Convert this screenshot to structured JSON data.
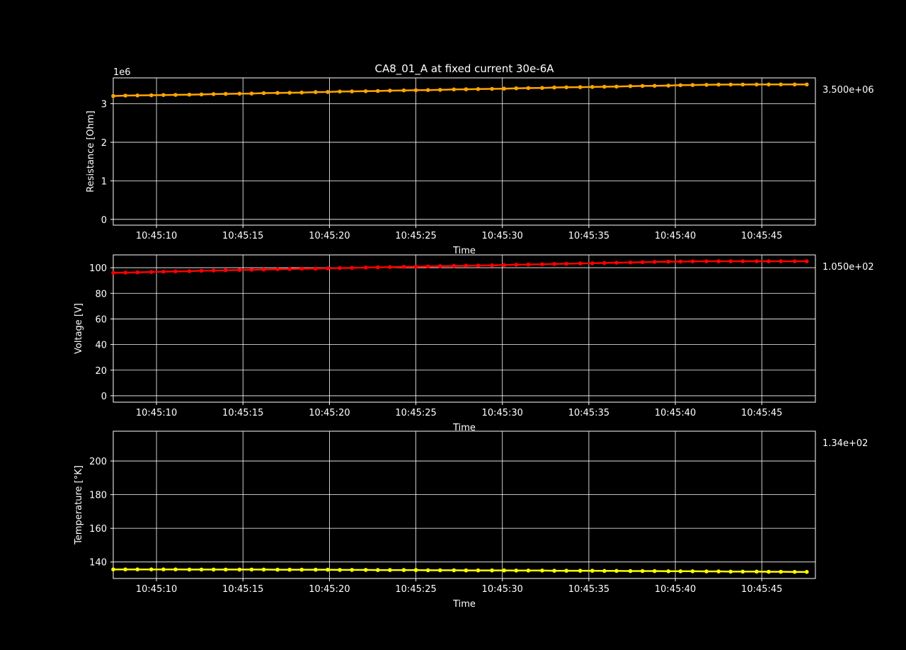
{
  "title": "CA8_01_A at fixed current 30e-6A",
  "chart_data": [
    {
      "type": "line",
      "xlabel": "Time",
      "ylabel": "Resistance [Ohm]",
      "y_offset_label": "1e6",
      "last_value_label": "3.500e+06",
      "color": "#ffa500",
      "grid": true,
      "x_tick_labels": [
        "10:45:10",
        "10:45:15",
        "10:45:20",
        "10:45:25",
        "10:45:30",
        "10:45:35",
        "10:45:40",
        "10:45:45"
      ],
      "y_tick_labels": [
        "0",
        "1",
        "2",
        "3"
      ],
      "xlim": [
        "10:45:07.5",
        "10:45:48.1"
      ],
      "ylim": [
        -150000,
        3670000
      ],
      "series": [
        {
          "x": [
            "10:45:07.5",
            "10:45:08.2",
            "10:45:08.9",
            "10:45:09.7",
            "10:45:10.4",
            "10:45:11.1",
            "10:45:11.9",
            "10:45:12.6",
            "10:45:13.3",
            "10:45:14.0",
            "10:45:14.8",
            "10:45:15.5",
            "10:45:16.2",
            "10:45:17.0",
            "10:45:17.7",
            "10:45:18.4",
            "10:45:19.2",
            "10:45:19.9",
            "10:45:20.6",
            "10:45:21.3",
            "10:45:22.1",
            "10:45:22.8",
            "10:45:23.5",
            "10:45:24.3",
            "10:45:25.0",
            "10:45:25.7",
            "10:45:26.4",
            "10:45:27.2",
            "10:45:27.9",
            "10:45:28.6",
            "10:45:29.4",
            "10:45:30.1",
            "10:45:30.8",
            "10:45:31.5",
            "10:45:32.3",
            "10:45:33.0",
            "10:45:33.7",
            "10:45:34.5",
            "10:45:35.2",
            "10:45:35.9",
            "10:45:36.6",
            "10:45:37.4",
            "10:45:38.1",
            "10:45:38.8",
            "10:45:39.6",
            "10:45:40.3",
            "10:45:41.0",
            "10:45:41.8",
            "10:45:42.5",
            "10:45:43.2",
            "10:45:43.9",
            "10:45:44.7",
            "10:45:45.4",
            "10:45:46.1",
            "10:45:46.9",
            "10:45:47.6"
          ],
          "values": [
            3200000,
            3210000,
            3215000,
            3220000,
            3225000,
            3230000,
            3235000,
            3240000,
            3250000,
            3255000,
            3260000,
            3265000,
            3275000,
            3280000,
            3285000,
            3290000,
            3300000,
            3305000,
            3315000,
            3320000,
            3325000,
            3330000,
            3340000,
            3345000,
            3350000,
            3355000,
            3360000,
            3370000,
            3375000,
            3380000,
            3385000,
            3390000,
            3400000,
            3405000,
            3410000,
            3420000,
            3425000,
            3430000,
            3435000,
            3440000,
            3445000,
            3455000,
            3460000,
            3465000,
            3470000,
            3480000,
            3485000,
            3490000,
            3495000,
            3497000,
            3498000,
            3500000,
            3500000,
            3500000,
            3500000,
            3500000
          ]
        }
      ]
    },
    {
      "type": "line",
      "xlabel": "Time",
      "ylabel": "Voltage [V]",
      "last_value_label": "1.050e+02",
      "color": "#ff0000",
      "grid": true,
      "x_tick_labels": [
        "10:45:10",
        "10:45:15",
        "10:45:20",
        "10:45:25",
        "10:45:30",
        "10:45:35",
        "10:45:40",
        "10:45:45"
      ],
      "y_tick_labels": [
        "0",
        "20",
        "40",
        "60",
        "80",
        "100"
      ],
      "xlim": [
        "10:45:07.5",
        "10:45:48.1"
      ],
      "ylim": [
        -5,
        110
      ],
      "series": [
        {
          "x": [
            "10:45:07.5",
            "10:45:08.2",
            "10:45:08.9",
            "10:45:09.7",
            "10:45:10.4",
            "10:45:11.1",
            "10:45:11.9",
            "10:45:12.6",
            "10:45:13.3",
            "10:45:14.0",
            "10:45:14.8",
            "10:45:15.5",
            "10:45:16.2",
            "10:45:17.0",
            "10:45:17.7",
            "10:45:18.4",
            "10:45:19.2",
            "10:45:19.9",
            "10:45:20.6",
            "10:45:21.3",
            "10:45:22.1",
            "10:45:22.8",
            "10:45:23.5",
            "10:45:24.3",
            "10:45:25.0",
            "10:45:25.7",
            "10:45:26.4",
            "10:45:27.2",
            "10:45:27.9",
            "10:45:28.6",
            "10:45:29.4",
            "10:45:30.1",
            "10:45:30.8",
            "10:45:31.5",
            "10:45:32.3",
            "10:45:33.0",
            "10:45:33.7",
            "10:45:34.5",
            "10:45:35.2",
            "10:45:35.9",
            "10:45:36.6",
            "10:45:37.4",
            "10:45:38.1",
            "10:45:38.8",
            "10:45:39.6",
            "10:45:40.3",
            "10:45:41.0",
            "10:45:41.8",
            "10:45:42.5",
            "10:45:43.2",
            "10:45:43.9",
            "10:45:44.7",
            "10:45:45.4",
            "10:45:46.1",
            "10:45:46.9",
            "10:45:47.6"
          ],
          "values": [
            96.0,
            96.2,
            96.4,
            96.7,
            96.9,
            97.1,
            97.3,
            97.6,
            97.8,
            98.0,
            98.2,
            98.4,
            98.6,
            98.8,
            99.0,
            99.2,
            99.3,
            99.5,
            99.7,
            99.9,
            100.1,
            100.3,
            100.5,
            100.7,
            100.8,
            101.0,
            101.2,
            101.4,
            101.6,
            101.7,
            101.9,
            102.1,
            102.3,
            102.5,
            102.7,
            102.9,
            103.1,
            103.3,
            103.5,
            103.7,
            103.9,
            104.1,
            104.3,
            104.5,
            104.7,
            104.8,
            104.9,
            105.0,
            105.0,
            105.0,
            105.0,
            105.0,
            105.0,
            105.0,
            105.0,
            105.0
          ]
        }
      ]
    },
    {
      "type": "line",
      "xlabel": "Time",
      "ylabel": "Temperature [°K]",
      "last_value_label": "1.34e+02",
      "color": "#ffff00",
      "grid": true,
      "x_tick_labels": [
        "10:45:10",
        "10:45:15",
        "10:45:20",
        "10:45:25",
        "10:45:30",
        "10:45:35",
        "10:45:40",
        "10:45:45"
      ],
      "y_tick_labels": [
        "140",
        "160",
        "180",
        "200"
      ],
      "xlim": [
        "10:45:07.5",
        "10:45:48.1"
      ],
      "ylim": [
        130.2,
        217.7
      ],
      "series": [
        {
          "x": [
            "10:45:07.5",
            "10:45:08.2",
            "10:45:08.9",
            "10:45:09.7",
            "10:45:10.4",
            "10:45:11.1",
            "10:45:11.9",
            "10:45:12.6",
            "10:45:13.3",
            "10:45:14.0",
            "10:45:14.8",
            "10:45:15.5",
            "10:45:16.2",
            "10:45:17.0",
            "10:45:17.7",
            "10:45:18.4",
            "10:45:19.2",
            "10:45:19.9",
            "10:45:20.6",
            "10:45:21.3",
            "10:45:22.1",
            "10:45:22.8",
            "10:45:23.5",
            "10:45:24.3",
            "10:45:25.0",
            "10:45:25.7",
            "10:45:26.4",
            "10:45:27.2",
            "10:45:27.9",
            "10:45:28.6",
            "10:45:29.4",
            "10:45:30.1",
            "10:45:30.8",
            "10:45:31.5",
            "10:45:32.3",
            "10:45:33.0",
            "10:45:33.7",
            "10:45:34.5",
            "10:45:35.2",
            "10:45:35.9",
            "10:45:36.6",
            "10:45:37.4",
            "10:45:38.1",
            "10:45:38.8",
            "10:45:39.6",
            "10:45:40.3",
            "10:45:41.0",
            "10:45:41.8",
            "10:45:42.5",
            "10:45:43.2",
            "10:45:43.9",
            "10:45:44.7",
            "10:45:45.4",
            "10:45:46.1",
            "10:45:46.9",
            "10:45:47.6"
          ],
          "values": [
            135.6,
            135.6,
            135.6,
            135.6,
            135.6,
            135.6,
            135.5,
            135.5,
            135.5,
            135.5,
            135.5,
            135.5,
            135.5,
            135.4,
            135.4,
            135.4,
            135.4,
            135.4,
            135.3,
            135.3,
            135.3,
            135.2,
            135.2,
            135.2,
            135.2,
            135.1,
            135.1,
            135.1,
            135.0,
            135.0,
            135.0,
            135.0,
            134.9,
            134.9,
            134.9,
            134.8,
            134.8,
            134.8,
            134.8,
            134.7,
            134.7,
            134.6,
            134.6,
            134.6,
            134.5,
            134.5,
            134.5,
            134.4,
            134.4,
            134.3,
            134.3,
            134.3,
            134.2,
            134.2,
            134.1,
            134.1
          ]
        }
      ]
    }
  ]
}
